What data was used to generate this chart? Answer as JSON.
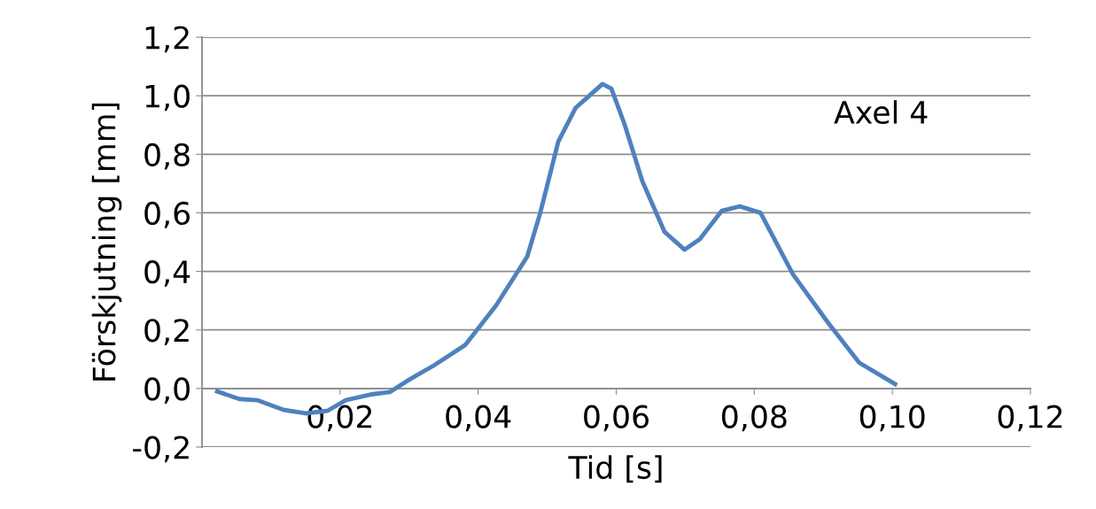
{
  "chart_data": {
    "type": "line",
    "xlabel": "Tid [s]",
    "ylabel": "Förskjutning [mm]",
    "annotations": [
      "Axel 4"
    ],
    "xlim": [
      0,
      0.12
    ],
    "xticks": [
      {
        "value": 0.02,
        "label": "0,02"
      },
      {
        "value": 0.04,
        "label": "0,04"
      },
      {
        "value": 0.06,
        "label": "0,06"
      },
      {
        "value": 0.08,
        "label": "0,08"
      },
      {
        "value": 0.1,
        "label": "0,10"
      },
      {
        "value": 0.12,
        "label": "0,12"
      }
    ],
    "ylim": [
      -0.2,
      1.2
    ],
    "yticks": [
      {
        "value": -0.2,
        "label": "-0,2"
      },
      {
        "value": 0,
        "label": "0,0"
      },
      {
        "value": 0.2,
        "label": "0,2"
      },
      {
        "value": 0.4,
        "label": "0,4"
      },
      {
        "value": 0.6,
        "label": "0,6"
      },
      {
        "value": 0.8,
        "label": "0,8"
      },
      {
        "value": 1.0,
        "label": "1,0"
      },
      {
        "value": 1.2,
        "label": "1,2"
      }
    ],
    "grid": "y",
    "legend": false,
    "marker": "none",
    "line_style": "solid",
    "series": [
      {
        "color": "#4f81bd",
        "x": [
          0.0022,
          0.0054,
          0.008,
          0.0118,
          0.015,
          0.0182,
          0.0208,
          0.0246,
          0.0272,
          0.0298,
          0.0336,
          0.0381,
          0.0426,
          0.0471,
          0.049,
          0.0516,
          0.0541,
          0.0561,
          0.058,
          0.0593,
          0.0612,
          0.0638,
          0.067,
          0.0699,
          0.0721,
          0.0753,
          0.0779,
          0.0809,
          0.0856,
          0.0907,
          0.0952,
          0.0991,
          0.1004
        ],
        "values": [
          -0.01,
          -0.036,
          -0.04,
          -0.073,
          -0.085,
          -0.076,
          -0.04,
          -0.02,
          -0.012,
          0.027,
          0.079,
          0.148,
          0.284,
          0.45,
          0.6,
          0.843,
          0.958,
          1.0,
          1.04,
          1.024,
          0.903,
          0.707,
          0.535,
          0.474,
          0.51,
          0.607,
          0.622,
          0.6,
          0.39,
          0.224,
          0.088,
          0.033,
          0.015
        ]
      }
    ]
  }
}
